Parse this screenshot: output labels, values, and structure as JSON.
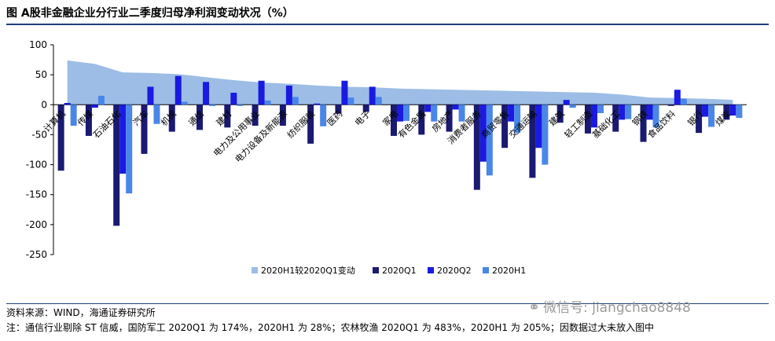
{
  "title": "图 A股非金融企业分行业二季度归母净利润变动状况（%）",
  "notes": {
    "source": "资料来源：WIND，海通证券研究所",
    "note": "注：通信行业剔除 ST 信威，国防军工 2020Q1 为 174%，2020H1 为 28%；农林牧渔 2020Q1 为 483%，2020H1 为 205%；因数据过大未放入图中"
  },
  "watermark": {
    "icon": "wechat-icon",
    "text": "微信号: jiangchao8848"
  },
  "colors": {
    "area": "#9dbde6",
    "q1": "#1a1a72",
    "q2": "#1a1ae0",
    "h1": "#4a86e8"
  },
  "chart_data": {
    "type": "bar",
    "title": "A股非金融企业分行业二季度归母净利润变动状况（%）",
    "ylim": [
      -250,
      100
    ],
    "yticks": [
      100,
      50,
      0,
      -50,
      -100,
      -150,
      -200,
      -250
    ],
    "legend_position": "bottom",
    "categories": [
      "计算机",
      "传媒",
      "石油石化",
      "汽车",
      "机械",
      "通信",
      "建材",
      "电力及公用事业",
      "电力设备及新能源",
      "纺织服装",
      "医药",
      "电子",
      "家电",
      "有色金属",
      "房地产",
      "消费者服务",
      "商贸零售",
      "交通运输",
      "建筑",
      "轻工制造",
      "基础化工",
      "钢铁",
      "食品饮料",
      "银行",
      "煤炭"
    ],
    "series": [
      {
        "name": "2020H1较2020Q1变动",
        "type": "area",
        "values": [
          74,
          68,
          54,
          53,
          51,
          46,
          41,
          37,
          35,
          32,
          30,
          29,
          27,
          26,
          25,
          24,
          23,
          22,
          21,
          20,
          17,
          12,
          11,
          10,
          8
        ]
      },
      {
        "name": "2020Q1",
        "type": "bar",
        "values": [
          -110,
          -52,
          -202,
          -82,
          -45,
          -42,
          -38,
          -35,
          -35,
          -65,
          -15,
          -12,
          -52,
          -50,
          -45,
          -142,
          -72,
          -122,
          -30,
          -48,
          -45,
          -62,
          -2,
          -47,
          -25
        ]
      },
      {
        "name": "2020Q2",
        "type": "bar",
        "values": [
          3,
          -5,
          -115,
          30,
          48,
          38,
          20,
          40,
          32,
          2,
          40,
          30,
          -28,
          -12,
          -8,
          -95,
          -28,
          -72,
          8,
          -38,
          -25,
          -25,
          25,
          -20,
          -18
        ]
      },
      {
        "name": "2020H1",
        "type": "bar",
        "values": [
          -35,
          15,
          -148,
          -32,
          5,
          -2,
          -2,
          7,
          13,
          -36,
          12,
          13,
          -27,
          -28,
          -28,
          -118,
          -47,
          -100,
          -5,
          -14,
          -24,
          -38,
          10,
          -37,
          -22
        ]
      }
    ]
  }
}
